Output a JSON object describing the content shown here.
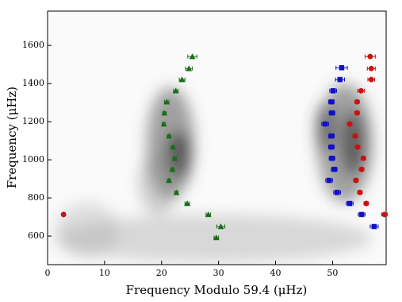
{
  "chart_data": {
    "type": "scatter",
    "xlabel": "Frequency Modulo 59.4 (μHz)",
    "ylabel": "Frequency (μHz)",
    "xlim": [
      0,
      59.4
    ],
    "ylim": [
      450,
      1780
    ],
    "xticks": [
      0,
      10,
      20,
      30,
      40,
      50
    ],
    "yticks": [
      600,
      800,
      1000,
      1200,
      1400,
      1600
    ],
    "series": [
      {
        "marker": "triangle",
        "color": "#1a6e1a",
        "x": [
          25.4,
          24.8,
          23.6,
          22.5,
          20.9,
          20.5,
          20.4,
          21.3,
          22.0,
          22.3,
          21.9,
          21.3,
          22.6,
          24.5,
          28.2,
          30.4,
          29.6
        ],
        "values": [
          1542,
          1479,
          1421,
          1362,
          1304,
          1246,
          1188,
          1125,
          1067,
          1008,
          950,
          892,
          829,
          771,
          713,
          650,
          592
        ],
        "xerr": [
          0.8,
          0.6,
          0.5,
          0.4,
          0.4,
          0.3,
          0.3,
          0.3,
          0.3,
          0.3,
          0.3,
          0.3,
          0.3,
          0.4,
          0.4,
          0.7,
          0.4
        ]
      },
      {
        "marker": "square",
        "color": "#1010c8",
        "x": [
          51.6,
          51.3,
          50.1,
          49.8,
          49.9,
          48.7,
          49.8,
          49.8,
          49.9,
          50.3,
          49.4,
          50.8,
          53.0,
          55.1,
          57.3
        ],
        "values": [
          1483,
          1421,
          1362,
          1304,
          1246,
          1188,
          1125,
          1067,
          1008,
          950,
          892,
          829,
          771,
          713,
          650
        ],
        "xerr": [
          1.0,
          0.8,
          0.6,
          0.5,
          0.5,
          0.6,
          0.5,
          0.5,
          0.5,
          0.5,
          0.6,
          0.6,
          0.6,
          0.6,
          0.7
        ]
      },
      {
        "marker": "circle",
        "color": "#cc1010",
        "x": [
          56.6,
          56.8,
          56.8,
          55.0,
          54.3,
          54.3,
          53.0,
          54.0,
          54.4,
          55.4,
          55.1,
          54.1,
          54.8,
          55.9,
          59.1,
          2.8
        ],
        "values": [
          1542,
          1479,
          1421,
          1362,
          1304,
          1246,
          1188,
          1125,
          1067,
          1008,
          950,
          892,
          829,
          771,
          713,
          713
        ],
        "xerr": [
          0.9,
          0.7,
          0.6,
          0.6,
          0.4,
          0.4,
          0.4,
          0.4,
          0.4,
          0.4,
          0.4,
          0.4,
          0.4,
          0.4,
          0.5,
          0.3
        ]
      }
    ]
  }
}
